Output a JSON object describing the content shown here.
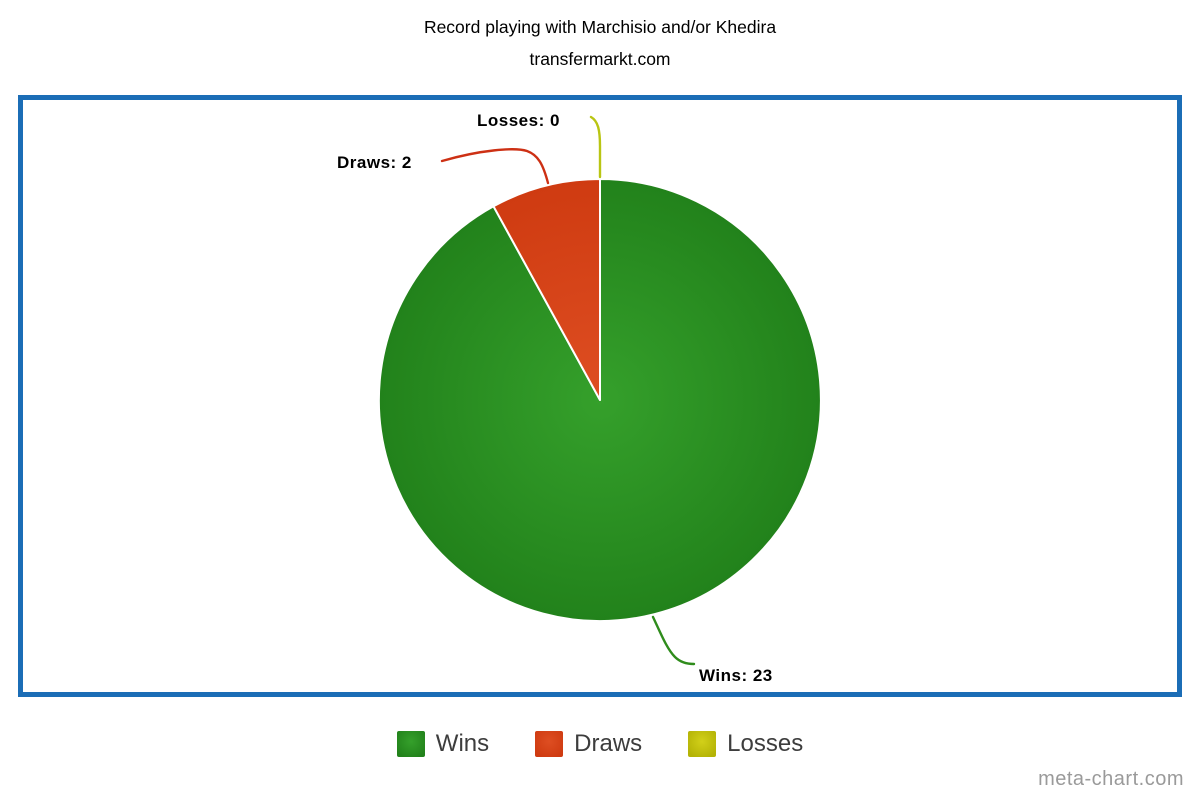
{
  "header": {
    "title": "Record playing with Marchisio and/or Khedira",
    "subtitle": "transfermarkt.com"
  },
  "chart_data": {
    "type": "pie",
    "title": "Record playing with Marchisio and/or Khedira",
    "subtitle": "transfermarkt.com",
    "categories": [
      "Wins",
      "Draws",
      "Losses"
    ],
    "values": [
      23,
      2,
      0
    ],
    "total": 25,
    "legend_position": "bottom",
    "rotation_start_deg": 0,
    "direction": "clockwise",
    "series": [
      {
        "name": "Wins",
        "value": 23,
        "label": "Wins: 23",
        "color_light": "#35a02b",
        "color_dark": "#22821b",
        "line_color": "#2f8c1c"
      },
      {
        "name": "Draws",
        "value": 2,
        "label": "Draws: 2",
        "color_light": "#de4e22",
        "color_dark": "#cf3b11",
        "line_color": "#cd3014"
      },
      {
        "name": "Losses",
        "value": 0,
        "label": "Losses: 0",
        "color_light": "#d2d019",
        "color_dark": "#b4b306",
        "line_color": "#b9c513"
      }
    ]
  },
  "frame": {
    "border_color": "#1b6db6"
  },
  "watermark": {
    "text": "meta-chart.com",
    "color": "#9a9a9a"
  }
}
